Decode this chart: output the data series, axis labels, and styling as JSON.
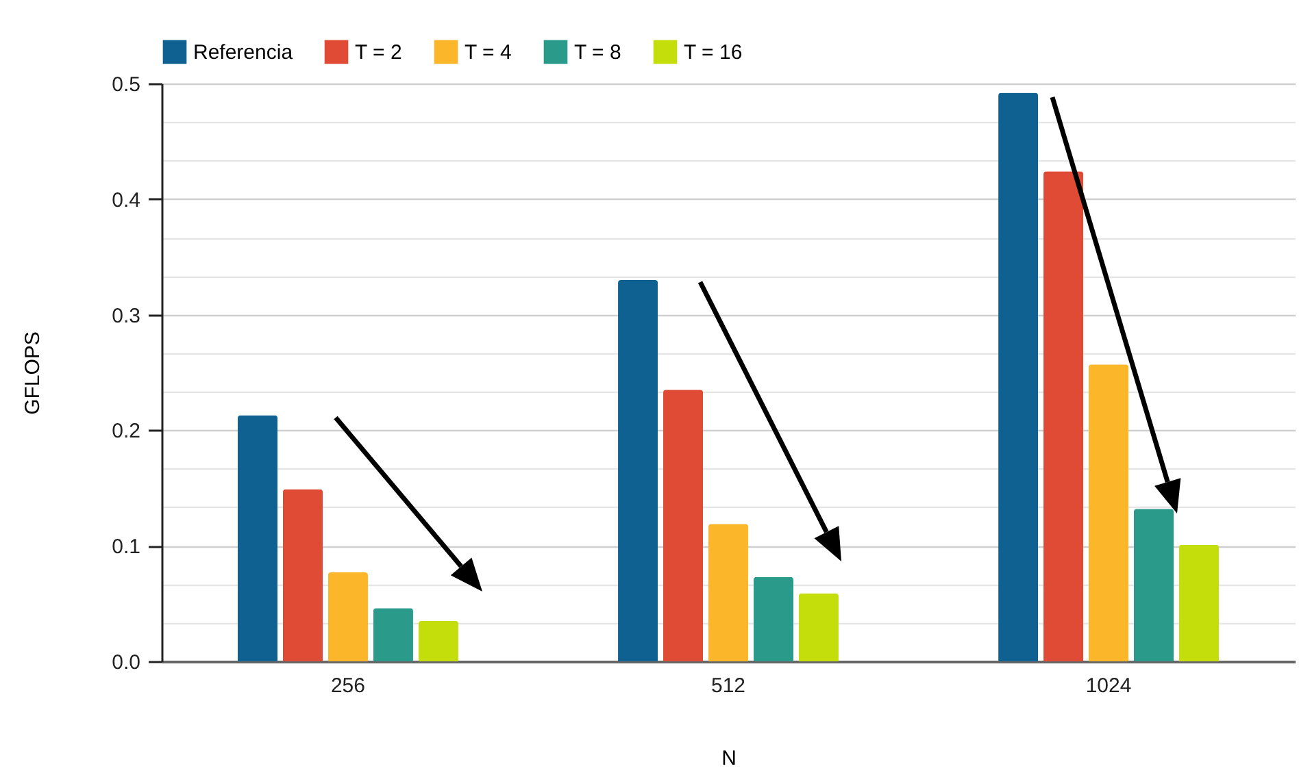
{
  "chart_data": {
    "type": "bar",
    "xlabel": "N",
    "ylabel": "GFLOPS",
    "categories": [
      "256",
      "512",
      "1024"
    ],
    "series": [
      {
        "name": "Referencia",
        "color": "#0e6191",
        "values": [
          0.213,
          0.33,
          0.492
        ]
      },
      {
        "name": "T = 2",
        "color": "#e04b36",
        "values": [
          0.149,
          0.235,
          0.424
        ]
      },
      {
        "name": "T = 4",
        "color": "#fbb62a",
        "values": [
          0.077,
          0.119,
          0.257
        ]
      },
      {
        "name": "T = 8",
        "color": "#2a9a8a",
        "values": [
          0.046,
          0.073,
          0.132
        ]
      },
      {
        "name": "T = 16",
        "color": "#c3de0b",
        "values": [
          0.035,
          0.059,
          0.101
        ]
      }
    ],
    "ylim": [
      0,
      0.5
    ],
    "yticks": [
      {
        "value": 0,
        "label": "0.0"
      },
      {
        "value": 0.0333,
        "label": null
      },
      {
        "value": 0.0667,
        "label": null
      },
      {
        "value": 0.1,
        "label": "0.1"
      },
      {
        "value": 0.1333,
        "label": null
      },
      {
        "value": 0.1667,
        "label": null
      },
      {
        "value": 0.2,
        "label": "0.2"
      },
      {
        "value": 0.2333,
        "label": null
      },
      {
        "value": 0.2667,
        "label": null
      },
      {
        "value": 0.3,
        "label": "0.3"
      },
      {
        "value": 0.3333,
        "label": null
      },
      {
        "value": 0.3667,
        "label": null
      },
      {
        "value": 0.4,
        "label": "0.4"
      },
      {
        "value": 0.4333,
        "label": null
      },
      {
        "value": 0.4667,
        "label": null
      },
      {
        "value": 0.5,
        "label": "0.5"
      }
    ],
    "grid": "y",
    "legend": "top"
  }
}
